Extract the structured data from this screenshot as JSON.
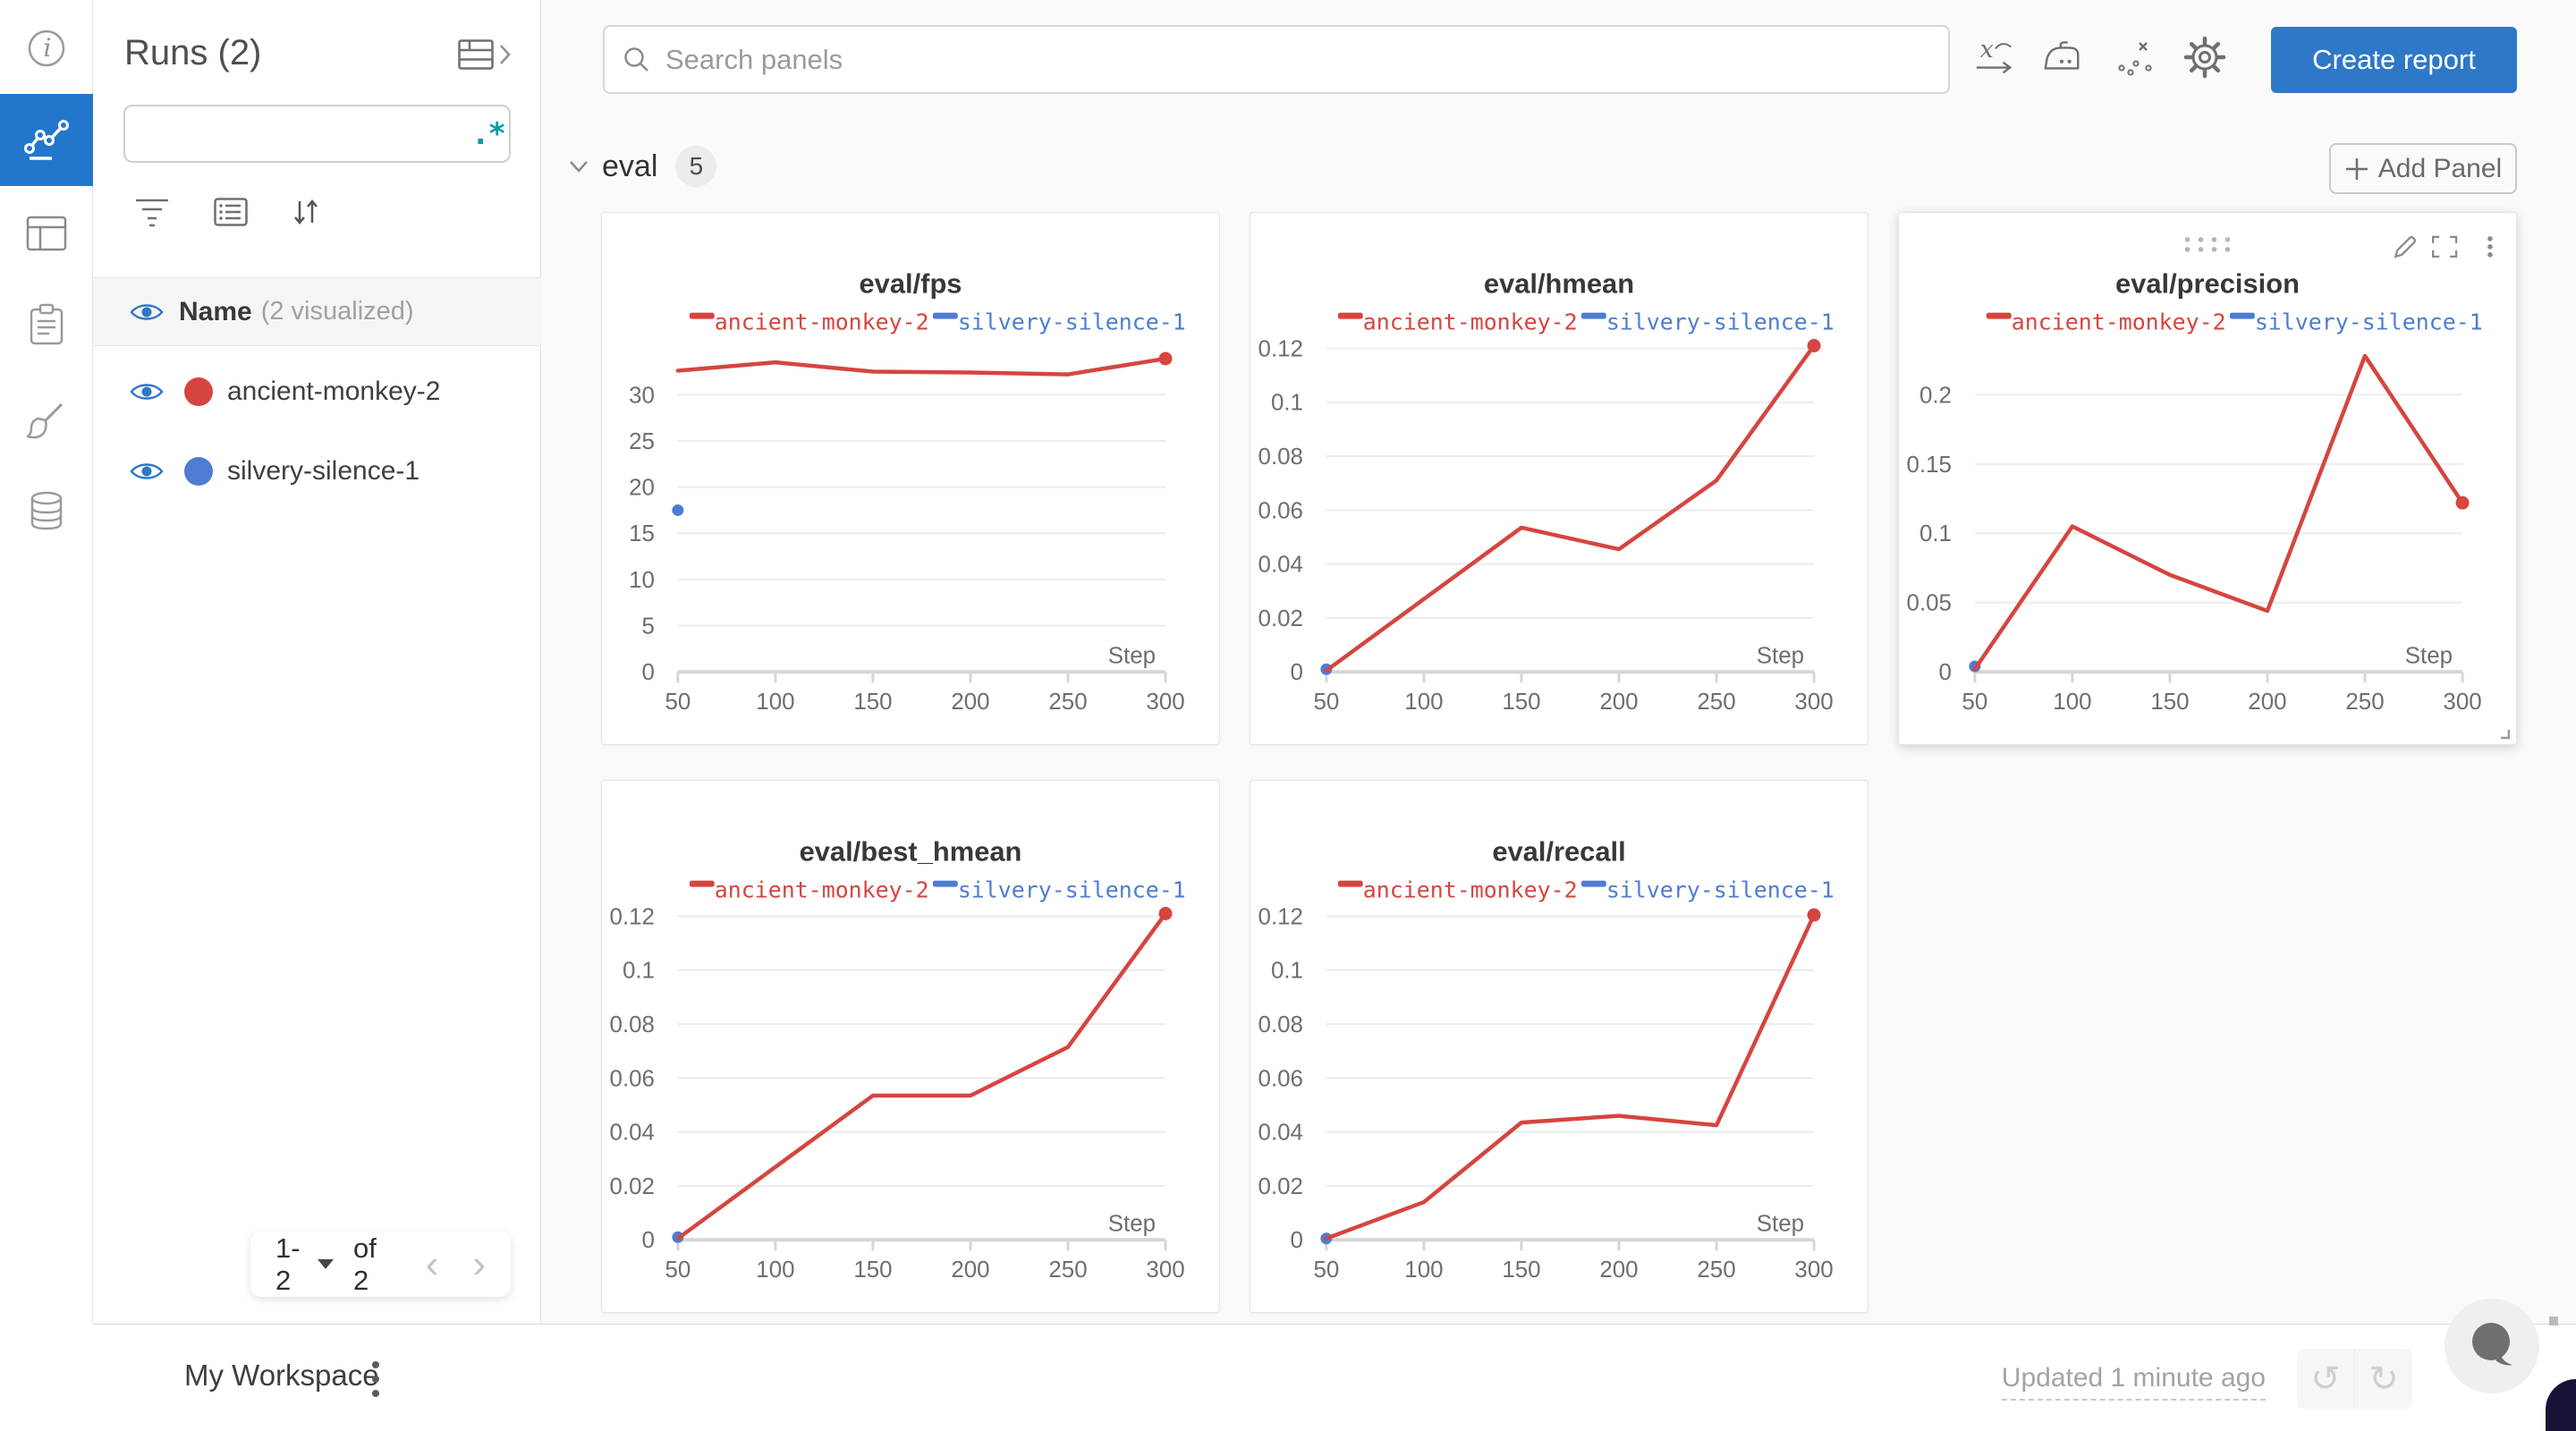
{
  "runs_panel": {
    "title": "Runs (2)",
    "search_placeholder": "",
    "regex_icon": ".*",
    "name_row": {
      "label": "Name",
      "meta": "(2 visualized)"
    },
    "runs": [
      {
        "name": "ancient-monkey-2",
        "color": "#d6453f"
      },
      {
        "name": "silvery-silence-1",
        "color": "#4e7cd3"
      }
    ],
    "pagination": {
      "range": "1-2",
      "of": "of 2"
    }
  },
  "topbar": {
    "search_placeholder": "Search panels",
    "create_report_label": "Create report"
  },
  "section": {
    "name": "eval",
    "count": "5",
    "add_panel_label": "Add Panel"
  },
  "chart_data": [
    {
      "type": "line",
      "title": "eval/fps",
      "xlabel": "Step",
      "xticks": [
        50,
        100,
        150,
        200,
        250,
        300
      ],
      "yticks": [
        0,
        5,
        10,
        15,
        20,
        25,
        30
      ],
      "legend_position": "top",
      "grid": true,
      "series": [
        {
          "name": "ancient-monkey-2",
          "color": "#d6453f",
          "x": [
            50,
            100,
            150,
            200,
            250,
            300
          ],
          "values": [
            32.6,
            33.5,
            32.5,
            32.4,
            32.2,
            33.9
          ]
        },
        {
          "name": "silvery-silence-1",
          "color": "#4e7cd3",
          "x": [
            50
          ],
          "values": [
            17.5
          ]
        }
      ]
    },
    {
      "type": "line",
      "title": "eval/hmean",
      "xlabel": "Step",
      "xticks": [
        50,
        100,
        150,
        200,
        250,
        300
      ],
      "yticks": [
        0,
        0.02,
        0.04,
        0.06,
        0.08,
        0.1,
        0.12
      ],
      "legend_position": "top",
      "grid": true,
      "series": [
        {
          "name": "ancient-monkey-2",
          "color": "#d6453f",
          "x": [
            50,
            100,
            150,
            200,
            250,
            300
          ],
          "values": [
            0.0005,
            0.027,
            0.0535,
            0.0455,
            0.071,
            0.121
          ]
        },
        {
          "name": "silvery-silence-1",
          "color": "#4e7cd3",
          "x": [
            50
          ],
          "values": [
            0.001
          ]
        }
      ]
    },
    {
      "type": "line",
      "title": "eval/precision",
      "xlabel": "Step",
      "xticks": [
        50,
        100,
        150,
        200,
        250,
        300
      ],
      "yticks": [
        0,
        0.05,
        0.1,
        0.15,
        0.2
      ],
      "legend_position": "top",
      "grid": true,
      "series": [
        {
          "name": "ancient-monkey-2",
          "color": "#d6453f",
          "x": [
            50,
            100,
            150,
            200,
            250,
            300
          ],
          "values": [
            0.002,
            0.105,
            0.07,
            0.044,
            0.228,
            0.122
          ]
        },
        {
          "name": "silvery-silence-1",
          "color": "#4e7cd3",
          "x": [
            50
          ],
          "values": [
            0.004
          ]
        }
      ]
    },
    {
      "type": "line",
      "title": "eval/best_hmean",
      "xlabel": "Step",
      "xticks": [
        50,
        100,
        150,
        200,
        250,
        300
      ],
      "yticks": [
        0,
        0.02,
        0.04,
        0.06,
        0.08,
        0.1,
        0.12
      ],
      "legend_position": "top",
      "grid": true,
      "series": [
        {
          "name": "ancient-monkey-2",
          "color": "#d6453f",
          "x": [
            50,
            100,
            150,
            200,
            250,
            300
          ],
          "values": [
            0.0005,
            0.027,
            0.0535,
            0.0535,
            0.0715,
            0.121
          ]
        },
        {
          "name": "silvery-silence-1",
          "color": "#4e7cd3",
          "x": [
            50
          ],
          "values": [
            0.001
          ]
        }
      ]
    },
    {
      "type": "line",
      "title": "eval/recall",
      "xlabel": "Step",
      "xticks": [
        50,
        100,
        150,
        200,
        250,
        300
      ],
      "yticks": [
        0,
        0.02,
        0.04,
        0.06,
        0.08,
        0.1,
        0.12
      ],
      "legend_position": "top",
      "grid": true,
      "series": [
        {
          "name": "ancient-monkey-2",
          "color": "#d6453f",
          "x": [
            50,
            100,
            150,
            200,
            250,
            300
          ],
          "values": [
            0.0005,
            0.014,
            0.0435,
            0.046,
            0.0425,
            0.1205
          ]
        },
        {
          "name": "silvery-silence-1",
          "color": "#4e7cd3",
          "x": [
            50
          ],
          "values": [
            0.0005
          ]
        }
      ]
    }
  ],
  "footer": {
    "workspace": "My Workspace",
    "updated": "Updated 1 minute ago"
  },
  "colors": {
    "accent_blue": "#2e78c7",
    "rail_active_blue": "#2277cd",
    "run_red": "#d6453f",
    "run_blue": "#4e7cd3",
    "regex_teal": "#0a9caa"
  }
}
